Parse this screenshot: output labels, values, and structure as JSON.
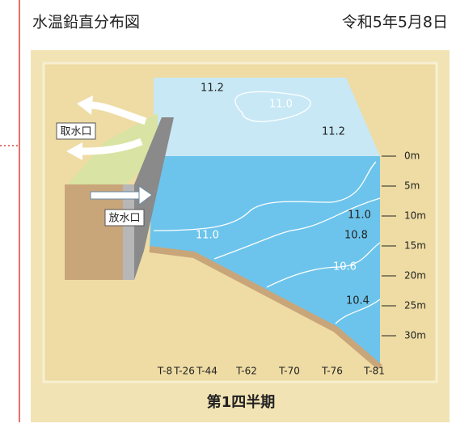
{
  "header": {
    "title": "水温鉛直分布図",
    "date": "令和5年5月8日"
  },
  "labels": {
    "intake": "取水口",
    "outlet": "放水口"
  },
  "isotherm_labels": [
    "11.2",
    "11.0",
    "11.2",
    "11.0",
    "11.0",
    "10.8",
    "10.6",
    "10.4"
  ],
  "depth_labels": [
    "0m",
    "5m",
    "10m",
    "15m",
    "20m",
    "25m",
    "30m"
  ],
  "stations": [
    "T-8",
    "T-26",
    "T-44",
    "T-62",
    "T-70",
    "T-76",
    "T-81"
  ],
  "caption": "第1四半期"
}
